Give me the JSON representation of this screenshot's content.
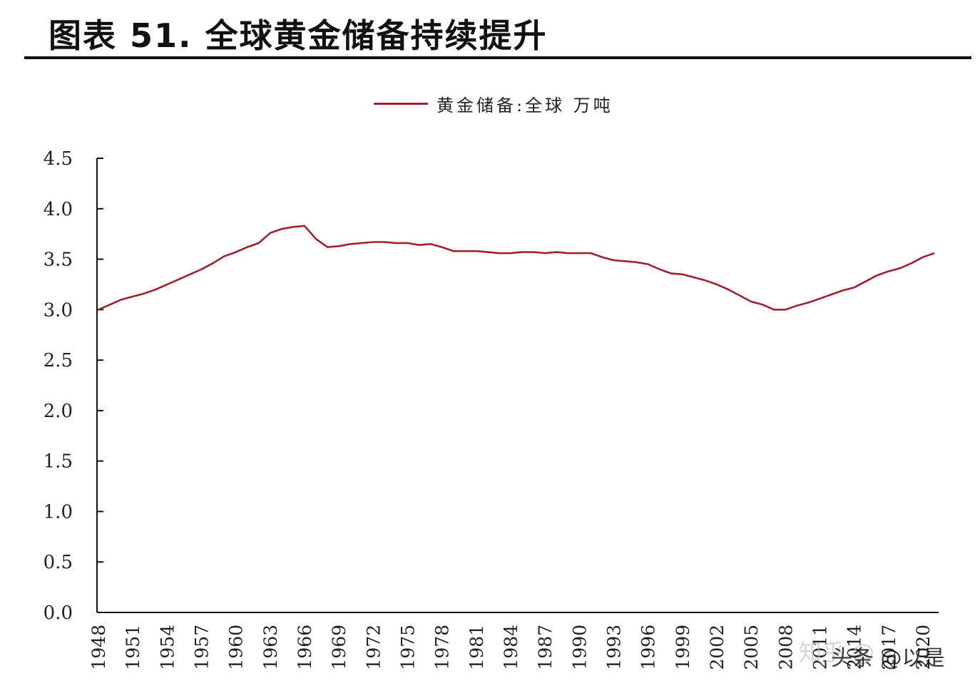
{
  "header": {
    "title": "图表 51. 全球黄金储备持续提升"
  },
  "legend": {
    "label": "黄金储备:全球 万吨",
    "color": "#a3202e"
  },
  "watermark": {
    "zhihu": "知乎 @",
    "toutiao": "头条 @以是"
  },
  "chart_data": {
    "type": "line",
    "title": "全球黄金储备持续提升",
    "xlabel": "",
    "ylabel": "",
    "ylim": [
      0,
      4.5
    ],
    "y_ticks": [
      "0.0",
      "0.5",
      "1.0",
      "1.5",
      "2.0",
      "2.5",
      "3.0",
      "3.5",
      "4.0",
      "4.5"
    ],
    "x_tick_labels": [
      "1948",
      "1951",
      "1954",
      "1957",
      "1960",
      "1963",
      "1966",
      "1969",
      "1972",
      "1975",
      "1978",
      "1981",
      "1984",
      "1987",
      "1990",
      "1993",
      "1996",
      "1999",
      "2002",
      "2005",
      "2008",
      "2011",
      "2014",
      "2017",
      "2020"
    ],
    "legend_position": "top-center",
    "grid": false,
    "series": [
      {
        "name": "黄金储备:全球 万吨",
        "color": "#a3202e",
        "x": [
          1948,
          1949,
          1950,
          1951,
          1952,
          1953,
          1954,
          1955,
          1956,
          1957,
          1958,
          1959,
          1960,
          1961,
          1962,
          1963,
          1964,
          1965,
          1966,
          1967,
          1968,
          1969,
          1970,
          1971,
          1972,
          1973,
          1974,
          1975,
          1976,
          1977,
          1978,
          1979,
          1980,
          1981,
          1982,
          1983,
          1984,
          1985,
          1986,
          1987,
          1988,
          1989,
          1990,
          1991,
          1992,
          1993,
          1994,
          1995,
          1996,
          1997,
          1998,
          1999,
          2000,
          2001,
          2002,
          2003,
          2004,
          2005,
          2006,
          2007,
          2008,
          2009,
          2010,
          2011,
          2012,
          2013,
          2014,
          2015,
          2016,
          2017,
          2018,
          2019,
          2020,
          2021
        ],
        "values": [
          3.0,
          3.05,
          3.1,
          3.13,
          3.16,
          3.2,
          3.25,
          3.3,
          3.35,
          3.4,
          3.46,
          3.53,
          3.57,
          3.62,
          3.66,
          3.76,
          3.8,
          3.82,
          3.83,
          3.7,
          3.62,
          3.63,
          3.65,
          3.66,
          3.67,
          3.67,
          3.66,
          3.66,
          3.64,
          3.65,
          3.62,
          3.58,
          3.58,
          3.58,
          3.57,
          3.56,
          3.56,
          3.57,
          3.57,
          3.56,
          3.57,
          3.56,
          3.56,
          3.56,
          3.52,
          3.49,
          3.48,
          3.47,
          3.45,
          3.4,
          3.36,
          3.35,
          3.32,
          3.29,
          3.25,
          3.2,
          3.14,
          3.08,
          3.05,
          3.0,
          3.0,
          3.04,
          3.07,
          3.11,
          3.15,
          3.19,
          3.22,
          3.28,
          3.34,
          3.38,
          3.41,
          3.46,
          3.52,
          3.56
        ]
      }
    ]
  }
}
